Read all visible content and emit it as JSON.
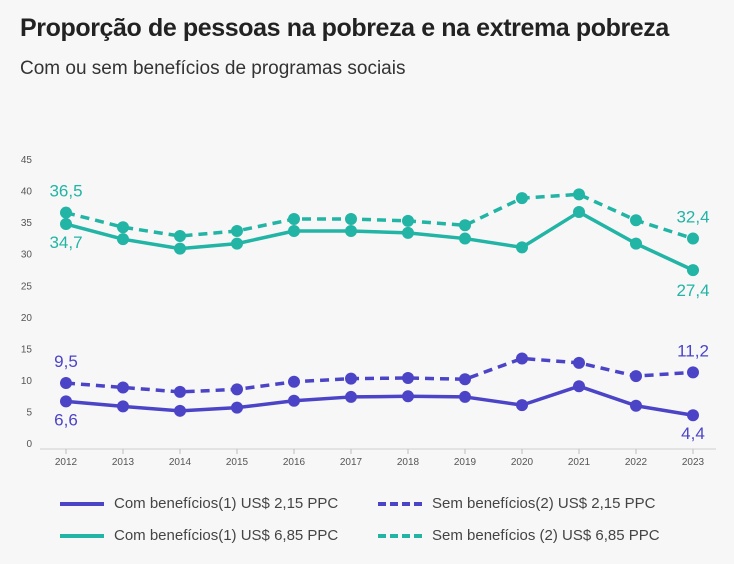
{
  "header": {
    "title": "Proporção de pessoas na pobreza e na extrema pobreza",
    "subtitle": "Com ou sem benefícios de programas sociais"
  },
  "colors": {
    "blue": "#4b44c7",
    "teal": "#22b4a5"
  },
  "chart_data": {
    "type": "line",
    "title": "Proporção de pessoas na pobreza e na extrema pobreza",
    "subtitle": "Com ou sem benefícios de programas sociais",
    "x": [
      "2012",
      "2013",
      "2014",
      "2015",
      "2016",
      "2017",
      "2018",
      "2019",
      "2020",
      "2021",
      "2022",
      "2023"
    ],
    "y_ticks": [
      "0",
      "5",
      "10",
      "15",
      "20",
      "25",
      "30",
      "35",
      "40",
      "45"
    ],
    "ylim": [
      0,
      45
    ],
    "grid": false,
    "legend_position": "bottom",
    "series": [
      {
        "name": "Sem benefícios (2) US$ 6,85 PPC",
        "color": "#22b4a5",
        "style": "dashed",
        "values": [
          36.5,
          34.2,
          32.8,
          33.6,
          35.5,
          35.5,
          35.2,
          34.5,
          38.8,
          39.4,
          35.3,
          32.4
        ]
      },
      {
        "name": "Com benefícios(1) US$ 6,85 PPC",
        "color": "#22b4a5",
        "style": "solid",
        "values": [
          34.7,
          32.3,
          30.8,
          31.6,
          33.6,
          33.6,
          33.3,
          32.4,
          31.0,
          36.6,
          31.6,
          27.4
        ]
      },
      {
        "name": "Sem benefícios(2) US$ 2,15 PPC",
        "color": "#4b44c7",
        "style": "dashed",
        "values": [
          9.5,
          8.8,
          8.1,
          8.5,
          9.7,
          10.2,
          10.3,
          10.1,
          13.4,
          12.7,
          10.6,
          11.2
        ]
      },
      {
        "name": "Com benefícios(1) US$ 2,15 PPC",
        "color": "#4b44c7",
        "style": "solid",
        "values": [
          6.6,
          5.8,
          5.1,
          5.6,
          6.7,
          7.3,
          7.4,
          7.3,
          6.0,
          9.0,
          5.9,
          4.4
        ]
      }
    ],
    "annotations": [
      "36,5",
      "34,7",
      "32,4",
      "27,4",
      "9,5",
      "6,6",
      "11,2",
      "4,4"
    ]
  },
  "legend": [
    {
      "label": "Com benefícios(1) US$ 2,15 PPC",
      "color": "#4b44c7",
      "style": "solid"
    },
    {
      "label": "Sem benefícios(2) US$ 2,15 PPC",
      "color": "#4b44c7",
      "style": "dashed"
    },
    {
      "label": "Com benefícios(1) US$ 6,85 PPC",
      "color": "#22b4a5",
      "style": "solid"
    },
    {
      "label": "Sem benefícios (2) US$ 6,85 PPC",
      "color": "#22b4a5",
      "style": "dashed"
    }
  ]
}
